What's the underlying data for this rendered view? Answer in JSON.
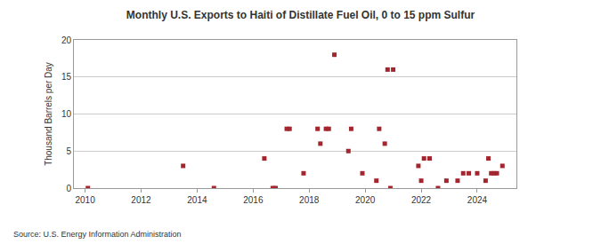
{
  "chart_data": {
    "type": "scatter",
    "title": "Monthly U.S. Exports to Haiti of Distillate Fuel Oil, 0 to 15 ppm Sulfur",
    "y_label": "Thousand Barrels per Day",
    "annotations": [
      "Source: U.S. Energy Information Administration"
    ],
    "x": [
      2010.1,
      2013.5,
      2014.6,
      2016.4,
      2016.7,
      2016.8,
      2017.2,
      2017.3,
      2017.8,
      2018.3,
      2018.4,
      2018.6,
      2018.7,
      2018.9,
      2019.4,
      2019.5,
      2019.9,
      2020.4,
      2020.5,
      2020.7,
      2020.8,
      2020.9,
      2021.0,
      2021.9,
      2022.0,
      2022.1,
      2022.3,
      2022.6,
      2022.9,
      2023.3,
      2023.5,
      2023.7,
      2024.0,
      2024.3,
      2024.4,
      2024.5,
      2024.6,
      2024.7,
      2024.9
    ],
    "values": [
      0,
      3,
      0,
      4,
      0,
      0,
      8,
      8,
      2,
      8,
      6,
      8,
      8,
      18,
      5,
      8,
      2,
      1,
      8,
      6,
      16,
      0,
      16,
      3,
      1,
      4,
      4,
      0,
      1,
      1,
      2,
      2,
      2,
      1,
      4,
      2,
      2,
      2,
      3
    ],
    "color": "#a3262e",
    "marker": "square",
    "xlim": [
      2009.6,
      2025.4
    ],
    "xticks": [
      2010,
      2012,
      2014,
      2016,
      2018,
      2020,
      2022,
      2024
    ],
    "ylim": [
      0,
      20
    ],
    "yticks": [
      0,
      5,
      10,
      15,
      20
    ],
    "grid": true
  }
}
